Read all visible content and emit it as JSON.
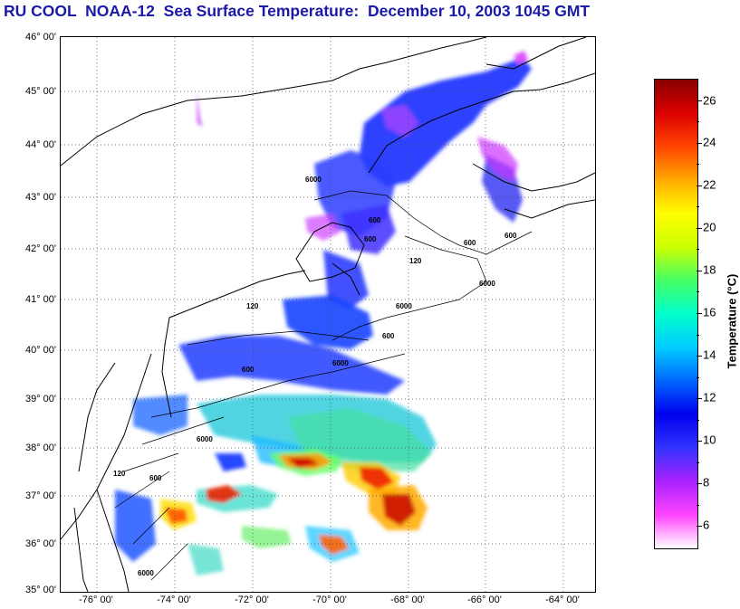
{
  "title": "RU COOL  NOAA-12  Sea Surface Temperature:  December 10, 2003 1045 GMT",
  "map": {
    "lat_labels": [
      "46° 00'",
      "45° 00'",
      "44° 00'",
      "43° 00'",
      "42° 00'",
      "41° 00'",
      "40° 00'",
      "39° 00'",
      "38° 00'",
      "37° 00'",
      "36° 00'",
      "35° 00'"
    ],
    "lon_labels": [
      "-76° 00'",
      "-74° 00'",
      "-72° 00'",
      "-70° 00'",
      "-68° 00'",
      "-66° 00'",
      "-64° 00'"
    ],
    "lat_range": [
      35,
      46
    ],
    "lon_range": [
      -77.2,
      -63.4
    ],
    "grid": "dotted",
    "isobath_labels": [
      "600",
      "600",
      "6000",
      "600",
      "120",
      "6000",
      "600",
      "120",
      "600",
      "6000",
      "600",
      "6000",
      "6000",
      "120",
      "600",
      "6000"
    ]
  },
  "colorbar": {
    "label": "Temperature (°C)",
    "ticks": [
      "26",
      "24",
      "22",
      "20",
      "18",
      "16",
      "14",
      "12",
      "10",
      "8",
      "6"
    ],
    "range": [
      5,
      27
    ],
    "colors": [
      "#ffffff",
      "#ff44ff",
      "#aa22ff",
      "#3333ff",
      "#0000ee",
      "#0066ff",
      "#00ccff",
      "#00ffcc",
      "#44ff66",
      "#ccff00",
      "#ffff00",
      "#ffaa00",
      "#ff4400",
      "#dd0000",
      "#880000"
    ]
  }
}
